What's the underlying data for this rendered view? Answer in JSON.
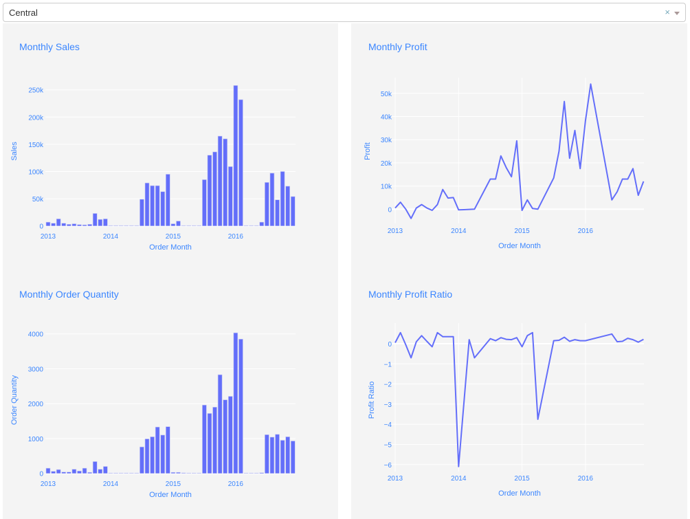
{
  "filter": {
    "selected": "Central",
    "clear_icon": "×",
    "arrow_icon": "caret-down"
  },
  "colors": {
    "bar": "#636efa",
    "line": "#636efa",
    "text": "#3b86ff",
    "panel": "#f4f4f4",
    "grid": "#ffffff"
  },
  "chart_data": [
    {
      "id": "sales",
      "type": "bar",
      "title": "Monthly Sales",
      "xlabel": "Order Month",
      "ylabel": "Sales",
      "x_ticks": [
        "2013",
        "2014",
        "2015",
        "2016"
      ],
      "y_ticks": [
        "0",
        "50k",
        "100k",
        "150k",
        "200k",
        "250k"
      ],
      "y_tick_values": [
        0,
        50000,
        100000,
        150000,
        200000,
        250000
      ],
      "start_month": "2013-01",
      "values": [
        7000,
        5000,
        13000,
        5000,
        3000,
        4000,
        2500,
        2000,
        3000,
        23000,
        12000,
        13000,
        0,
        0,
        500,
        500,
        0,
        0,
        49000,
        79000,
        74000,
        74000,
        63000,
        95000,
        4000,
        9000,
        500,
        0,
        0,
        0,
        85000,
        130000,
        136000,
        165000,
        160000,
        109000,
        258000,
        232000,
        0,
        0,
        0,
        7000,
        80000,
        97000,
        48000,
        100000,
        73000,
        54000
      ],
      "grid": true
    },
    {
      "id": "profit",
      "type": "line",
      "title": "Monthly Profit",
      "xlabel": "Order Month",
      "ylabel": "Profit",
      "x_ticks": [
        "2013",
        "2014",
        "2015",
        "2016"
      ],
      "y_ticks": [
        "0",
        "10k",
        "20k",
        "30k",
        "40k",
        "50k"
      ],
      "y_tick_values": [
        0,
        10000,
        20000,
        30000,
        40000,
        50000
      ],
      "points": [
        [
          "2013-01",
          500
        ],
        [
          "2013-02",
          3000
        ],
        [
          "2013-03",
          0
        ],
        [
          "2013-04",
          -4000
        ],
        [
          "2013-05",
          500
        ],
        [
          "2013-06",
          2000
        ],
        [
          "2013-07",
          500
        ],
        [
          "2013-08",
          -500
        ],
        [
          "2013-09",
          2000
        ],
        [
          "2013-10",
          8500
        ],
        [
          "2013-11",
          4800
        ],
        [
          "2013-12",
          5000
        ],
        [
          "2014-01",
          -300
        ],
        [
          "2014-02",
          -200
        ],
        [
          "2014-03",
          -100
        ],
        [
          "2014-04",
          0
        ],
        [
          "2014-07",
          13000
        ],
        [
          "2014-08",
          13000
        ],
        [
          "2014-09",
          23000
        ],
        [
          "2014-10",
          18000
        ],
        [
          "2014-11",
          14000
        ],
        [
          "2014-12",
          29500
        ],
        [
          "2015-01",
          -500
        ],
        [
          "2015-02",
          4000
        ],
        [
          "2015-03",
          300
        ],
        [
          "2015-04",
          0
        ],
        [
          "2015-07",
          13500
        ],
        [
          "2015-08",
          25000
        ],
        [
          "2015-09",
          46500
        ],
        [
          "2015-10",
          22000
        ],
        [
          "2015-11",
          34000
        ],
        [
          "2015-12",
          17500
        ],
        [
          "2016-01",
          38000
        ],
        [
          "2016-02",
          54000
        ],
        [
          "2016-06",
          4000
        ],
        [
          "2016-07",
          7500
        ],
        [
          "2016-08",
          13000
        ],
        [
          "2016-09",
          13000
        ],
        [
          "2016-10",
          17500
        ],
        [
          "2016-11",
          6000
        ],
        [
          "2016-12",
          12000
        ]
      ],
      "grid": true
    },
    {
      "id": "quantity",
      "type": "bar",
      "title": "Monthly Order Quantity",
      "xlabel": "Order Month",
      "ylabel": "Order Quantity",
      "x_ticks": [
        "2013",
        "2014",
        "2015",
        "2016"
      ],
      "y_ticks": [
        "0",
        "1000",
        "2000",
        "3000",
        "4000"
      ],
      "y_tick_values": [
        0,
        1000,
        2000,
        3000,
        4000
      ],
      "start_month": "2013-01",
      "values": [
        150,
        60,
        110,
        40,
        40,
        120,
        70,
        150,
        30,
        340,
        120,
        200,
        0,
        0,
        10,
        10,
        0,
        0,
        760,
        990,
        1050,
        1330,
        1100,
        1340,
        30,
        30,
        15,
        0,
        0,
        0,
        1960,
        1720,
        1900,
        2830,
        2110,
        2210,
        4030,
        3850,
        0,
        0,
        0,
        20,
        1110,
        1040,
        1120,
        950,
        1050,
        930
      ],
      "grid": true
    },
    {
      "id": "ratio",
      "type": "line",
      "title": "Monthly Profit Ratio",
      "xlabel": "Order Month",
      "ylabel": "Profit Ratio",
      "x_ticks": [
        "2013",
        "2014",
        "2015",
        "2016"
      ],
      "y_ticks": [
        "−6",
        "−5",
        "−4",
        "−3",
        "−2",
        "−1",
        "0"
      ],
      "y_tick_values": [
        -6,
        -5,
        -4,
        -3,
        -2,
        -1,
        0
      ],
      "points": [
        [
          "2013-01",
          0.05
        ],
        [
          "2013-02",
          0.55
        ],
        [
          "2013-03",
          -0.05
        ],
        [
          "2013-04",
          -0.7
        ],
        [
          "2013-05",
          0.1
        ],
        [
          "2013-06",
          0.4
        ],
        [
          "2013-07",
          0.12
        ],
        [
          "2013-08",
          -0.15
        ],
        [
          "2013-09",
          0.55
        ],
        [
          "2013-10",
          0.35
        ],
        [
          "2013-11",
          0.35
        ],
        [
          "2013-12",
          0.35
        ],
        [
          "2014-01",
          -6.1
        ],
        [
          "2014-03",
          0.2
        ],
        [
          "2014-04",
          -0.7
        ],
        [
          "2014-07",
          0.25
        ],
        [
          "2014-08",
          0.15
        ],
        [
          "2014-09",
          0.3
        ],
        [
          "2014-10",
          0.22
        ],
        [
          "2014-11",
          0.2
        ],
        [
          "2014-12",
          0.3
        ],
        [
          "2015-01",
          -0.15
        ],
        [
          "2015-02",
          0.4
        ],
        [
          "2015-03",
          0.55
        ],
        [
          "2015-04",
          -3.75
        ],
        [
          "2015-07",
          0.15
        ],
        [
          "2015-08",
          0.17
        ],
        [
          "2015-09",
          0.32
        ],
        [
          "2015-10",
          0.12
        ],
        [
          "2015-11",
          0.2
        ],
        [
          "2015-12",
          0.15
        ],
        [
          "2016-01",
          0.15
        ],
        [
          "2016-06",
          0.48
        ],
        [
          "2016-07",
          0.1
        ],
        [
          "2016-08",
          0.12
        ],
        [
          "2016-09",
          0.27
        ],
        [
          "2016-10",
          0.2
        ],
        [
          "2016-11",
          0.08
        ],
        [
          "2016-12",
          0.22
        ]
      ],
      "grid": true
    }
  ]
}
